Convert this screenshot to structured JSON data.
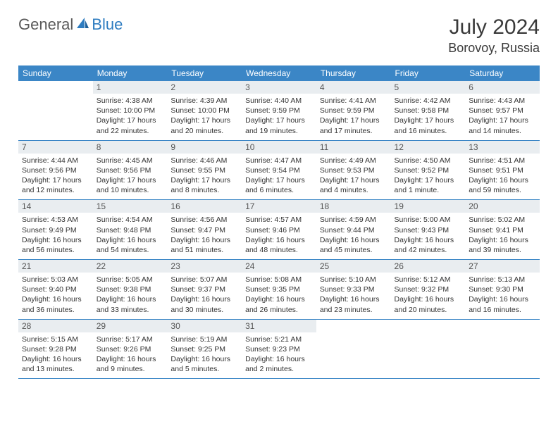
{
  "logo": {
    "part1": "General",
    "part2": "Blue"
  },
  "title": "July 2024",
  "location": "Borovoy, Russia",
  "colors": {
    "header_bg": "#3b86c6",
    "header_text": "#ffffff",
    "daynum_bg": "#e9edf0",
    "text": "#333333",
    "logo_gray": "#5a5a5a",
    "logo_blue": "#2e7cc0",
    "rule": "#3b86c6"
  },
  "dow": [
    "Sunday",
    "Monday",
    "Tuesday",
    "Wednesday",
    "Thursday",
    "Friday",
    "Saturday"
  ],
  "weeks": [
    [
      {
        "n": "",
        "l1": "",
        "l2": "",
        "l3": "",
        "l4": ""
      },
      {
        "n": "1",
        "l1": "Sunrise: 4:38 AM",
        "l2": "Sunset: 10:00 PM",
        "l3": "Daylight: 17 hours",
        "l4": "and 22 minutes."
      },
      {
        "n": "2",
        "l1": "Sunrise: 4:39 AM",
        "l2": "Sunset: 10:00 PM",
        "l3": "Daylight: 17 hours",
        "l4": "and 20 minutes."
      },
      {
        "n": "3",
        "l1": "Sunrise: 4:40 AM",
        "l2": "Sunset: 9:59 PM",
        "l3": "Daylight: 17 hours",
        "l4": "and 19 minutes."
      },
      {
        "n": "4",
        "l1": "Sunrise: 4:41 AM",
        "l2": "Sunset: 9:59 PM",
        "l3": "Daylight: 17 hours",
        "l4": "and 17 minutes."
      },
      {
        "n": "5",
        "l1": "Sunrise: 4:42 AM",
        "l2": "Sunset: 9:58 PM",
        "l3": "Daylight: 17 hours",
        "l4": "and 16 minutes."
      },
      {
        "n": "6",
        "l1": "Sunrise: 4:43 AM",
        "l2": "Sunset: 9:57 PM",
        "l3": "Daylight: 17 hours",
        "l4": "and 14 minutes."
      }
    ],
    [
      {
        "n": "7",
        "l1": "Sunrise: 4:44 AM",
        "l2": "Sunset: 9:56 PM",
        "l3": "Daylight: 17 hours",
        "l4": "and 12 minutes."
      },
      {
        "n": "8",
        "l1": "Sunrise: 4:45 AM",
        "l2": "Sunset: 9:56 PM",
        "l3": "Daylight: 17 hours",
        "l4": "and 10 minutes."
      },
      {
        "n": "9",
        "l1": "Sunrise: 4:46 AM",
        "l2": "Sunset: 9:55 PM",
        "l3": "Daylight: 17 hours",
        "l4": "and 8 minutes."
      },
      {
        "n": "10",
        "l1": "Sunrise: 4:47 AM",
        "l2": "Sunset: 9:54 PM",
        "l3": "Daylight: 17 hours",
        "l4": "and 6 minutes."
      },
      {
        "n": "11",
        "l1": "Sunrise: 4:49 AM",
        "l2": "Sunset: 9:53 PM",
        "l3": "Daylight: 17 hours",
        "l4": "and 4 minutes."
      },
      {
        "n": "12",
        "l1": "Sunrise: 4:50 AM",
        "l2": "Sunset: 9:52 PM",
        "l3": "Daylight: 17 hours",
        "l4": "and 1 minute."
      },
      {
        "n": "13",
        "l1": "Sunrise: 4:51 AM",
        "l2": "Sunset: 9:51 PM",
        "l3": "Daylight: 16 hours",
        "l4": "and 59 minutes."
      }
    ],
    [
      {
        "n": "14",
        "l1": "Sunrise: 4:53 AM",
        "l2": "Sunset: 9:49 PM",
        "l3": "Daylight: 16 hours",
        "l4": "and 56 minutes."
      },
      {
        "n": "15",
        "l1": "Sunrise: 4:54 AM",
        "l2": "Sunset: 9:48 PM",
        "l3": "Daylight: 16 hours",
        "l4": "and 54 minutes."
      },
      {
        "n": "16",
        "l1": "Sunrise: 4:56 AM",
        "l2": "Sunset: 9:47 PM",
        "l3": "Daylight: 16 hours",
        "l4": "and 51 minutes."
      },
      {
        "n": "17",
        "l1": "Sunrise: 4:57 AM",
        "l2": "Sunset: 9:46 PM",
        "l3": "Daylight: 16 hours",
        "l4": "and 48 minutes."
      },
      {
        "n": "18",
        "l1": "Sunrise: 4:59 AM",
        "l2": "Sunset: 9:44 PM",
        "l3": "Daylight: 16 hours",
        "l4": "and 45 minutes."
      },
      {
        "n": "19",
        "l1": "Sunrise: 5:00 AM",
        "l2": "Sunset: 9:43 PM",
        "l3": "Daylight: 16 hours",
        "l4": "and 42 minutes."
      },
      {
        "n": "20",
        "l1": "Sunrise: 5:02 AM",
        "l2": "Sunset: 9:41 PM",
        "l3": "Daylight: 16 hours",
        "l4": "and 39 minutes."
      }
    ],
    [
      {
        "n": "21",
        "l1": "Sunrise: 5:03 AM",
        "l2": "Sunset: 9:40 PM",
        "l3": "Daylight: 16 hours",
        "l4": "and 36 minutes."
      },
      {
        "n": "22",
        "l1": "Sunrise: 5:05 AM",
        "l2": "Sunset: 9:38 PM",
        "l3": "Daylight: 16 hours",
        "l4": "and 33 minutes."
      },
      {
        "n": "23",
        "l1": "Sunrise: 5:07 AM",
        "l2": "Sunset: 9:37 PM",
        "l3": "Daylight: 16 hours",
        "l4": "and 30 minutes."
      },
      {
        "n": "24",
        "l1": "Sunrise: 5:08 AM",
        "l2": "Sunset: 9:35 PM",
        "l3": "Daylight: 16 hours",
        "l4": "and 26 minutes."
      },
      {
        "n": "25",
        "l1": "Sunrise: 5:10 AM",
        "l2": "Sunset: 9:33 PM",
        "l3": "Daylight: 16 hours",
        "l4": "and 23 minutes."
      },
      {
        "n": "26",
        "l1": "Sunrise: 5:12 AM",
        "l2": "Sunset: 9:32 PM",
        "l3": "Daylight: 16 hours",
        "l4": "and 20 minutes."
      },
      {
        "n": "27",
        "l1": "Sunrise: 5:13 AM",
        "l2": "Sunset: 9:30 PM",
        "l3": "Daylight: 16 hours",
        "l4": "and 16 minutes."
      }
    ],
    [
      {
        "n": "28",
        "l1": "Sunrise: 5:15 AM",
        "l2": "Sunset: 9:28 PM",
        "l3": "Daylight: 16 hours",
        "l4": "and 13 minutes."
      },
      {
        "n": "29",
        "l1": "Sunrise: 5:17 AM",
        "l2": "Sunset: 9:26 PM",
        "l3": "Daylight: 16 hours",
        "l4": "and 9 minutes."
      },
      {
        "n": "30",
        "l1": "Sunrise: 5:19 AM",
        "l2": "Sunset: 9:25 PM",
        "l3": "Daylight: 16 hours",
        "l4": "and 5 minutes."
      },
      {
        "n": "31",
        "l1": "Sunrise: 5:21 AM",
        "l2": "Sunset: 9:23 PM",
        "l3": "Daylight: 16 hours",
        "l4": "and 2 minutes."
      },
      {
        "n": "",
        "l1": "",
        "l2": "",
        "l3": "",
        "l4": ""
      },
      {
        "n": "",
        "l1": "",
        "l2": "",
        "l3": "",
        "l4": ""
      },
      {
        "n": "",
        "l1": "",
        "l2": "",
        "l3": "",
        "l4": ""
      }
    ]
  ]
}
